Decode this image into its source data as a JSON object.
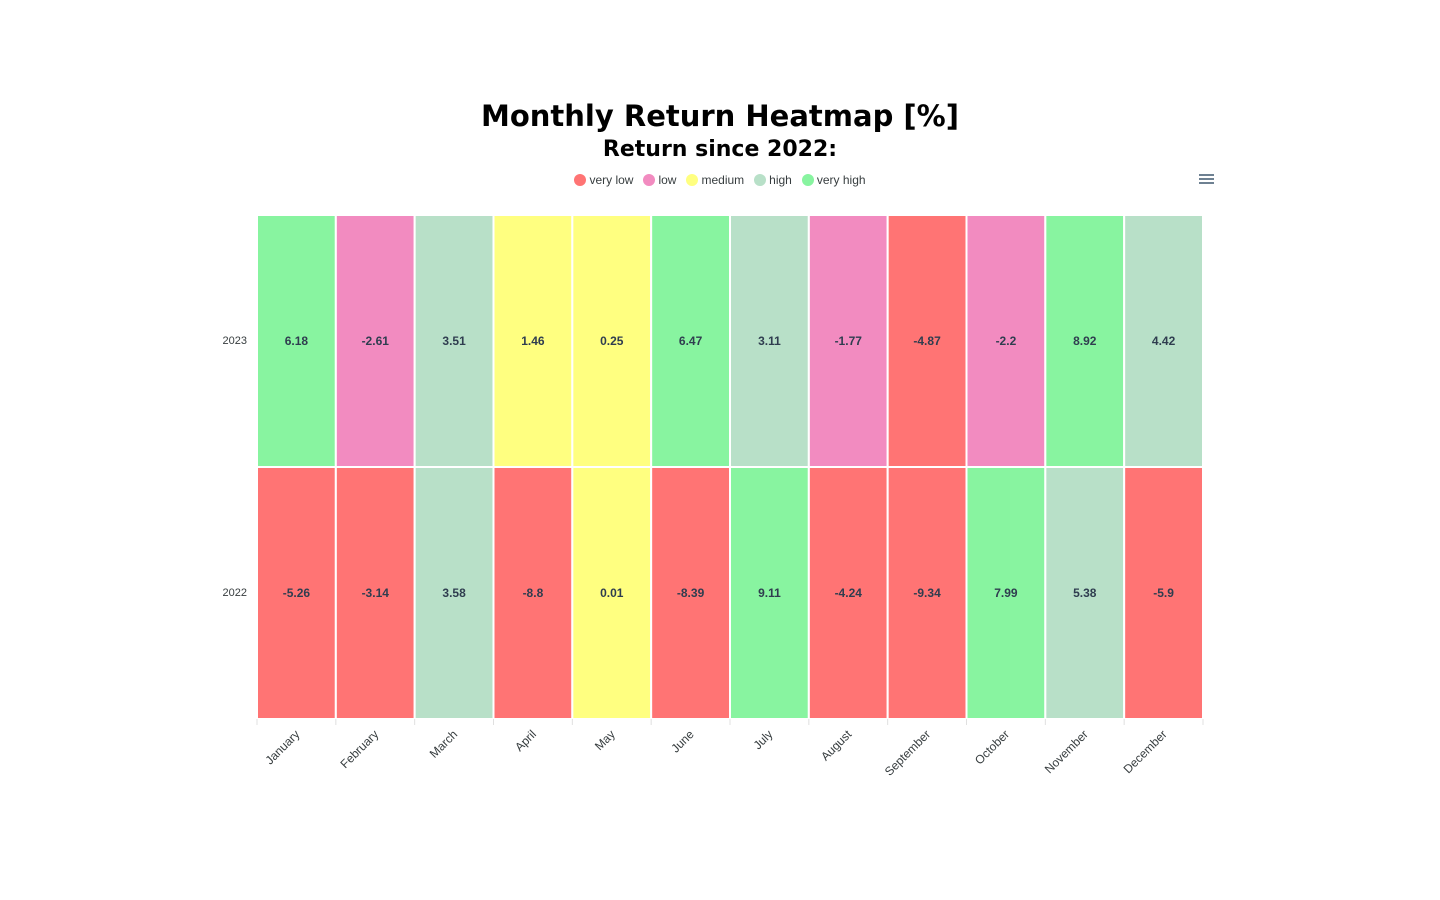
{
  "chart_data": {
    "type": "heatmap",
    "title": "Monthly Return Heatmap [%]",
    "subtitle": "Return since 2022:",
    "categories": [
      "January",
      "February",
      "March",
      "April",
      "May",
      "June",
      "July",
      "August",
      "September",
      "October",
      "November",
      "December"
    ],
    "series": [
      {
        "name": "2023",
        "values": [
          6.18,
          -2.61,
          3.51,
          1.46,
          0.25,
          6.47,
          3.11,
          -1.77,
          -4.87,
          -2.2,
          8.92,
          4.42
        ]
      },
      {
        "name": "2022",
        "values": [
          -5.26,
          -3.14,
          3.58,
          -8.8,
          0.01,
          -8.39,
          9.11,
          -4.24,
          -9.34,
          7.99,
          5.38,
          -5.9
        ]
      }
    ],
    "legend": {
      "placement": "top-center",
      "entries": [
        {
          "label": "very low",
          "color": "#ff7474"
        },
        {
          "label": "low",
          "color": "#f28bc0"
        },
        {
          "label": "medium",
          "color": "#ffff80"
        },
        {
          "label": "high",
          "color": "#b8e0c8"
        },
        {
          "label": "very high",
          "color": "#88f4a0"
        }
      ]
    },
    "color_ranges": [
      {
        "label": "very low",
        "from": -100,
        "to": -3
      },
      {
        "label": "low",
        "from": -3,
        "to": -1
      },
      {
        "label": "medium",
        "from": -1,
        "to": 2
      },
      {
        "label": "high",
        "from": 2,
        "to": 6
      },
      {
        "label": "very high",
        "from": 6,
        "to": 100
      }
    ]
  },
  "colors": {
    "very_low": "#ff7474",
    "low": "#f28bc0",
    "medium": "#ffff80",
    "high": "#b8e0c8",
    "very_high": "#88f4a0",
    "label_text": "#2f3d4f",
    "axis_text": "#373d3f"
  },
  "toolbar": {
    "menu_icon": "hamburger-menu-icon"
  }
}
